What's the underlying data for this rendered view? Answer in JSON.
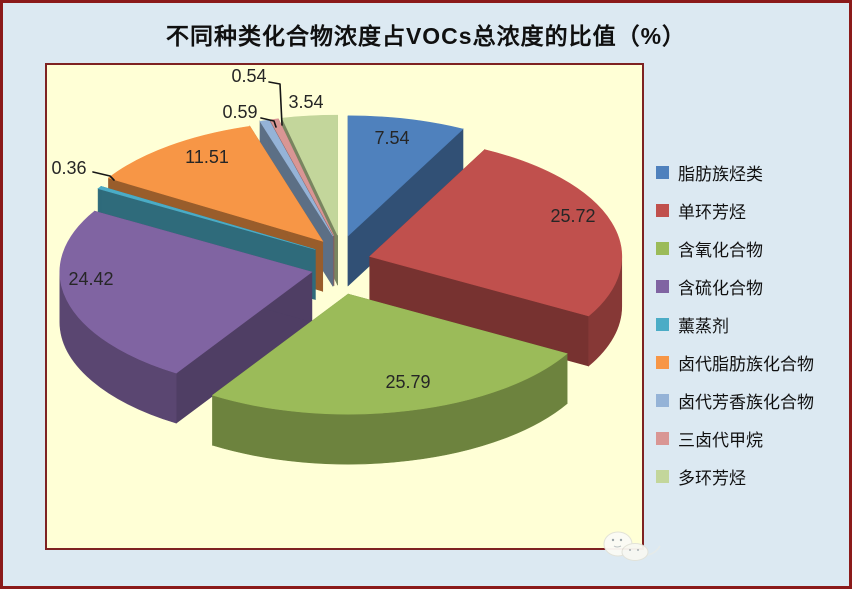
{
  "title": "不同种类化合物浓度占VOCs总浓度的比值（%）",
  "chart_data": {
    "type": "pie",
    "style": "3d-exploded",
    "title": "不同种类化合物浓度占VOCs总浓度的比值（%）",
    "unit": "%",
    "legend_position": "right",
    "grid": false,
    "categories": [
      "脂肪族烃类",
      "单环芳烃",
      "含氧化合物",
      "含硫化合物",
      "薰蒸剂",
      "卤代脂肪族化合物",
      "卤代芳香族化合物",
      "三卤代甲烷",
      "多环芳烃"
    ],
    "values": [
      7.54,
      25.72,
      25.79,
      24.42,
      0.36,
      11.51,
      0.59,
      0.54,
      3.54
    ],
    "data_labels": [
      "7.54",
      "25.72",
      "25.79",
      "24.42",
      "0.36",
      "11.51",
      "0.59",
      "0.54",
      "3.54"
    ],
    "colors": [
      "#4F81BD",
      "#C0504D",
      "#9BBB59",
      "#8064A2",
      "#4BACC6",
      "#F79646",
      "#95B3D7",
      "#D99694",
      "#C3D69B"
    ]
  },
  "colors": {
    "page_background": "#DCE9F2",
    "frame_border": "#8B1A1A",
    "plot_background": "#FFFFD6",
    "plot_border": "#7E2222",
    "label_text": "#262626",
    "legend_text": "#101010"
  }
}
